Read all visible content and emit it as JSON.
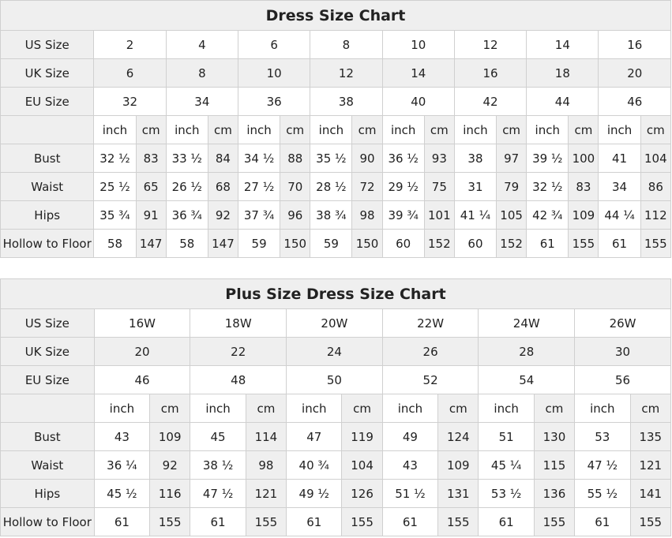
{
  "tables": [
    {
      "title": "Dress Size Chart",
      "size_rows": [
        {
          "label": "US Size",
          "values": [
            "2",
            "4",
            "6",
            "8",
            "10",
            "12",
            "14",
            "16"
          ],
          "shaded": false
        },
        {
          "label": "UK Size",
          "values": [
            "6",
            "8",
            "10",
            "12",
            "14",
            "16",
            "18",
            "20"
          ],
          "shaded": true
        },
        {
          "label": "EU Size",
          "values": [
            "32",
            "34",
            "36",
            "38",
            "40",
            "42",
            "44",
            "46"
          ],
          "shaded": false
        }
      ],
      "unit_labels": [
        "inch",
        "cm"
      ],
      "measure_rows": [
        {
          "label": "Bust",
          "values": [
            "32 ½",
            "83",
            "33 ½",
            "84",
            "34 ½",
            "88",
            "35 ½",
            "90",
            "36 ½",
            "93",
            "38",
            "97",
            "39 ½",
            "100",
            "41",
            "104"
          ]
        },
        {
          "label": "Waist",
          "values": [
            "25 ½",
            "65",
            "26 ½",
            "68",
            "27 ½",
            "70",
            "28 ½",
            "72",
            "29 ½",
            "75",
            "31",
            "79",
            "32 ½",
            "83",
            "34",
            "86"
          ]
        },
        {
          "label": "Hips",
          "values": [
            "35 ¾",
            "91",
            "36 ¾",
            "92",
            "37 ¾",
            "96",
            "38 ¾",
            "98",
            "39 ¾",
            "101",
            "41 ¼",
            "105",
            "42 ¾",
            "109",
            "44 ¼",
            "112"
          ]
        },
        {
          "label": "Hollow to Floor",
          "values": [
            "58",
            "147",
            "58",
            "147",
            "59",
            "150",
            "59",
            "150",
            "60",
            "152",
            "60",
            "152",
            "61",
            "155",
            "61",
            "155"
          ]
        }
      ]
    },
    {
      "title": "Plus Size Dress Size Chart",
      "size_rows": [
        {
          "label": "US Size",
          "values": [
            "16W",
            "18W",
            "20W",
            "22W",
            "24W",
            "26W"
          ],
          "shaded": false
        },
        {
          "label": "UK Size",
          "values": [
            "20",
            "22",
            "24",
            "26",
            "28",
            "30"
          ],
          "shaded": true
        },
        {
          "label": "EU Size",
          "values": [
            "46",
            "48",
            "50",
            "52",
            "54",
            "56"
          ],
          "shaded": false
        }
      ],
      "unit_labels": [
        "inch",
        "cm"
      ],
      "measure_rows": [
        {
          "label": "Bust",
          "values": [
            "43",
            "109",
            "45",
            "114",
            "47",
            "119",
            "49",
            "124",
            "51",
            "130",
            "53",
            "135"
          ]
        },
        {
          "label": "Waist",
          "values": [
            "36 ¼",
            "92",
            "38 ½",
            "98",
            "40 ¾",
            "104",
            "43",
            "109",
            "45 ¼",
            "115",
            "47 ½",
            "121"
          ]
        },
        {
          "label": "Hips",
          "values": [
            "45 ½",
            "116",
            "47 ½",
            "121",
            "49 ½",
            "126",
            "51 ½",
            "131",
            "53 ½",
            "136",
            "55 ½",
            "141"
          ]
        },
        {
          "label": "Hollow to Floor",
          "values": [
            "61",
            "155",
            "61",
            "155",
            "61",
            "155",
            "61",
            "155",
            "61",
            "155",
            "61",
            "155"
          ]
        }
      ]
    }
  ],
  "colors": {
    "header_bg": "#efefef",
    "border": "#d0d0d0"
  }
}
